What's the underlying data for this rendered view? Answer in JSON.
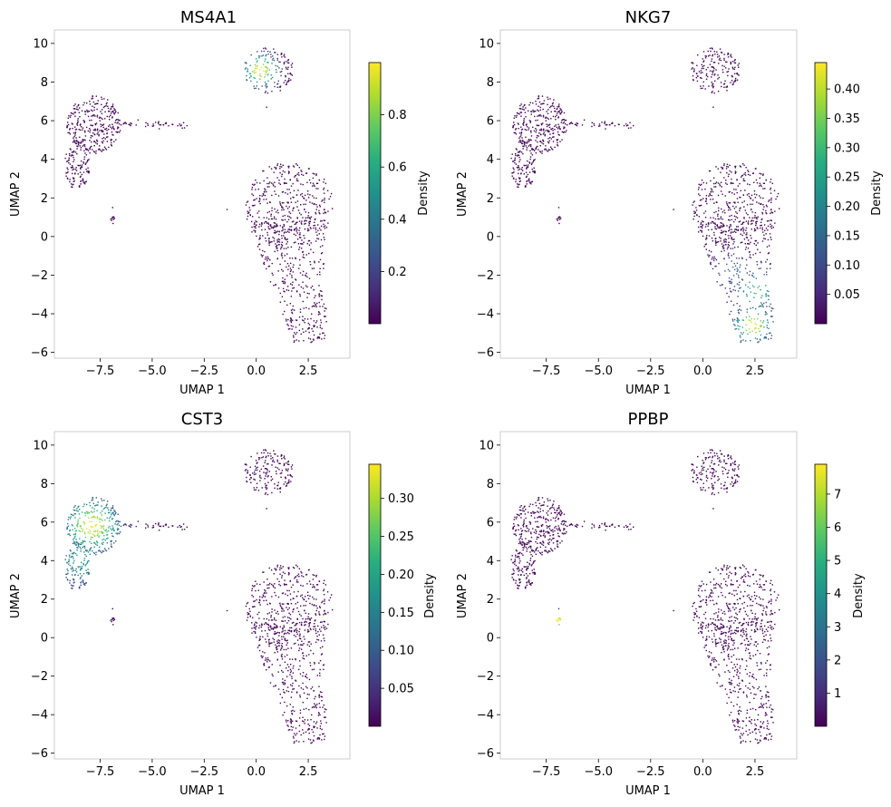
{
  "chart_data": [
    {
      "type": "scatter",
      "title": "MS4A1",
      "xlabel": "UMAP 1",
      "ylabel": "UMAP 2",
      "xlim": [
        -9.7,
        4.5
      ],
      "ylim": [
        -6.3,
        10.7
      ],
      "xticks": [
        -7.5,
        -5.0,
        -2.5,
        0.0,
        2.5
      ],
      "xtick_labels": [
        "−7.5",
        "−5.0",
        "−2.5",
        "0.0",
        "2.5"
      ],
      "yticks": [
        -6,
        -4,
        -2,
        0,
        2,
        4,
        6,
        8,
        10
      ],
      "ytick_labels": [
        "−6",
        "−4",
        "−2",
        "0",
        "2",
        "4",
        "6",
        "8",
        "10"
      ],
      "colorbar": {
        "label": "Density",
        "range": [
          0.0,
          1.0
        ],
        "ticks": [
          0.2,
          0.4,
          0.6,
          0.8
        ],
        "tick_labels": [
          "0.2",
          "0.4",
          "0.6",
          "0.8"
        ],
        "colormap": "viridis"
      },
      "hotspots": [
        {
          "x": 0.2,
          "y": 8.6,
          "peak": 1.0,
          "spread": 0.55
        }
      ],
      "grid": false,
      "legend": "none"
    },
    {
      "type": "scatter",
      "title": "NKG7",
      "xlabel": "UMAP 1",
      "ylabel": "UMAP 2",
      "xlim": [
        -9.7,
        4.5
      ],
      "ylim": [
        -6.3,
        10.7
      ],
      "xticks": [
        -7.5,
        -5.0,
        -2.5,
        0.0,
        2.5
      ],
      "xtick_labels": [
        "−7.5",
        "−5.0",
        "−2.5",
        "0.0",
        "2.5"
      ],
      "yticks": [
        -6,
        -4,
        -2,
        0,
        2,
        4,
        6,
        8,
        10
      ],
      "ytick_labels": [
        "−6",
        "−4",
        "−2",
        "0",
        "2",
        "4",
        "6",
        "8",
        "10"
      ],
      "colorbar": {
        "label": "Density",
        "range": [
          0.0,
          0.445
        ],
        "ticks": [
          0.05,
          0.1,
          0.15,
          0.2,
          0.25,
          0.3,
          0.35,
          0.4
        ],
        "tick_labels": [
          "0.05",
          "0.10",
          "0.15",
          "0.20",
          "0.25",
          "0.30",
          "0.35",
          "0.40"
        ],
        "colormap": "viridis"
      },
      "hotspots": [
        {
          "x": 2.4,
          "y": -4.6,
          "peak": 0.44,
          "spread": 0.6
        },
        {
          "x": 2.6,
          "y": -2.8,
          "peak": 0.3,
          "spread": 0.7
        },
        {
          "x": 1.5,
          "y": -1.8,
          "peak": 0.14,
          "spread": 0.7
        }
      ],
      "grid": false,
      "legend": "none"
    },
    {
      "type": "scatter",
      "title": "CST3",
      "xlabel": "UMAP 1",
      "ylabel": "UMAP 2",
      "xlim": [
        -9.7,
        4.5
      ],
      "ylim": [
        -6.3,
        10.7
      ],
      "xticks": [
        -7.5,
        -5.0,
        -2.5,
        0.0,
        2.5
      ],
      "xtick_labels": [
        "−7.5",
        "−5.0",
        "−2.5",
        "0.0",
        "2.5"
      ],
      "yticks": [
        -6,
        -4,
        -2,
        0,
        2,
        4,
        6,
        8,
        10
      ],
      "ytick_labels": [
        "−6",
        "−4",
        "−2",
        "0",
        "2",
        "4",
        "6",
        "8",
        "10"
      ],
      "colorbar": {
        "label": "Density",
        "range": [
          0.0,
          0.345
        ],
        "ticks": [
          0.05,
          0.1,
          0.15,
          0.2,
          0.25,
          0.3
        ],
        "tick_labels": [
          "0.05",
          "0.10",
          "0.15",
          "0.20",
          "0.25",
          "0.30"
        ],
        "colormap": "viridis"
      },
      "hotspots": [
        {
          "x": -7.9,
          "y": 5.8,
          "peak": 0.34,
          "spread": 0.9
        },
        {
          "x": -8.4,
          "y": 4.0,
          "peak": 0.18,
          "spread": 1.0
        }
      ],
      "grid": false,
      "legend": "none"
    },
    {
      "type": "scatter",
      "title": "PPBP",
      "xlabel": "UMAP 1",
      "ylabel": "UMAP 2",
      "xlim": [
        -9.7,
        4.5
      ],
      "ylim": [
        -6.3,
        10.7
      ],
      "xticks": [
        -7.5,
        -5.0,
        -2.5,
        0.0,
        2.5
      ],
      "xtick_labels": [
        "−7.5",
        "−5.0",
        "−2.5",
        "0.0",
        "2.5"
      ],
      "yticks": [
        -6,
        -4,
        -2,
        0,
        2,
        4,
        6,
        8,
        10
      ],
      "ytick_labels": [
        "−6",
        "−4",
        "−2",
        "0",
        "2",
        "4",
        "6",
        "8",
        "10"
      ],
      "colorbar": {
        "label": "Density",
        "range": [
          0.0,
          7.9
        ],
        "ticks": [
          1,
          2,
          3,
          4,
          5,
          6,
          7
        ],
        "tick_labels": [
          "1",
          "2",
          "3",
          "4",
          "5",
          "6",
          "7"
        ],
        "colormap": "viridis"
      },
      "hotspots": [
        {
          "x": -6.9,
          "y": 0.9,
          "peak": 7.9,
          "spread": 0.3
        }
      ],
      "grid": false,
      "legend": "none"
    }
  ]
}
